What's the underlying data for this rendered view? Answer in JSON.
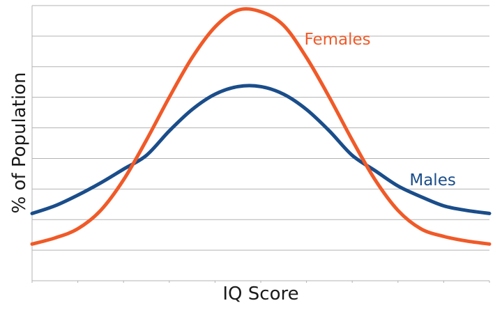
{
  "chart_data": {
    "type": "line",
    "title": "",
    "xlabel": "IQ Score",
    "ylabel": "% of Population",
    "xlim": [
      0,
      100
    ],
    "ylim": [
      0,
      9
    ],
    "grid": true,
    "legend": "inline labels",
    "x": [
      0,
      5,
      10,
      15,
      20,
      25,
      30,
      35,
      40,
      45,
      50,
      55,
      60,
      65,
      70,
      75,
      80,
      85,
      90,
      95,
      100
    ],
    "series": [
      {
        "name": "Females",
        "color": "#f05a28",
        "values": [
          1.2,
          1.4,
          1.7,
          2.3,
          3.3,
          4.6,
          6.0,
          7.3,
          8.3,
          8.85,
          8.8,
          8.35,
          7.3,
          6.0,
          4.6,
          3.3,
          2.3,
          1.7,
          1.45,
          1.3,
          1.2
        ]
      },
      {
        "name": "Males",
        "color": "#1a4d8a",
        "values": [
          2.2,
          2.45,
          2.8,
          3.2,
          3.65,
          4.1,
          4.9,
          5.6,
          6.1,
          6.35,
          6.35,
          6.1,
          5.6,
          4.9,
          4.1,
          3.6,
          3.1,
          2.75,
          2.45,
          2.3,
          2.2
        ]
      }
    ],
    "label_points": [
      {
        "series": "Females",
        "x": 58
      },
      {
        "series": "Males",
        "x": 81
      }
    ]
  }
}
